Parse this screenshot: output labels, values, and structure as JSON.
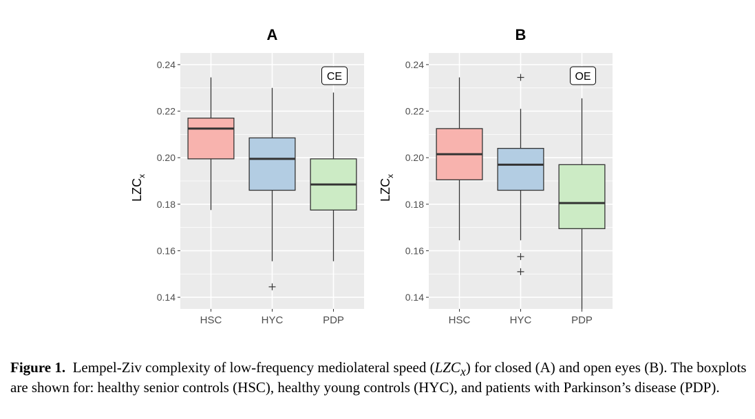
{
  "chart_data": [
    {
      "type": "boxplot",
      "title": "A",
      "ylabel": "LZC",
      "ylabel_sub": "x",
      "annotation": "CE",
      "ylim": [
        0.135,
        0.245
      ],
      "yticks": [
        0.14,
        0.16,
        0.18,
        0.2,
        0.22,
        0.24
      ],
      "ytick_labels": [
        "0.14",
        "0.16",
        "0.18",
        "0.20",
        "0.22",
        "0.24"
      ],
      "categories": [
        "HSC",
        "HYC",
        "PDP"
      ],
      "grid": true,
      "boxes": [
        {
          "name": "HSC",
          "whisker_low": 0.1775,
          "q1": 0.1995,
          "median": 0.2125,
          "q3": 0.217,
          "whisker_high": 0.2345,
          "outliers": [],
          "color": "#F8B3AE"
        },
        {
          "name": "HYC",
          "whisker_low": 0.1555,
          "q1": 0.186,
          "median": 0.1995,
          "q3": 0.2085,
          "whisker_high": 0.23,
          "outliers": [
            0.1445
          ],
          "color": "#B3CDE3"
        },
        {
          "name": "PDP",
          "whisker_low": 0.1555,
          "q1": 0.1775,
          "median": 0.1885,
          "q3": 0.1995,
          "whisker_high": 0.228,
          "outliers": [],
          "color": "#CCEBC5"
        }
      ]
    },
    {
      "type": "boxplot",
      "title": "B",
      "ylabel": "LZC",
      "ylabel_sub": "x",
      "annotation": "OE",
      "ylim": [
        0.135,
        0.245
      ],
      "yticks": [
        0.14,
        0.16,
        0.18,
        0.2,
        0.22,
        0.24
      ],
      "ytick_labels": [
        "0.14",
        "0.16",
        "0.18",
        "0.20",
        "0.22",
        "0.24"
      ],
      "categories": [
        "HSC",
        "HYC",
        "PDP"
      ],
      "grid": true,
      "boxes": [
        {
          "name": "HSC",
          "whisker_low": 0.1645,
          "q1": 0.1905,
          "median": 0.2015,
          "q3": 0.2125,
          "whisker_high": 0.2345,
          "outliers": [],
          "color": "#F8B3AE"
        },
        {
          "name": "HYC",
          "whisker_low": 0.1645,
          "q1": 0.186,
          "median": 0.197,
          "q3": 0.204,
          "whisker_high": 0.221,
          "outliers": [
            0.2345,
            0.1575,
            0.151
          ],
          "color": "#B3CDE3"
        },
        {
          "name": "PDP",
          "whisker_low": 0.135,
          "q1": 0.1695,
          "median": 0.1805,
          "q3": 0.197,
          "whisker_high": 0.2255,
          "outliers": [],
          "color": "#CCEBC5"
        }
      ]
    }
  ],
  "caption": {
    "label": "Figure 1.",
    "text_before": "Lempel-Ziv complexity of low-frequency mediolateral speed (",
    "math": "LZC",
    "math_sub": "x",
    "text_after": ") for closed (A) and open eyes (B). The boxplots are shown for: healthy senior controls (HSC), healthy young controls (HYC), and patients with Parkinson’s disease (PDP)."
  },
  "colors": {
    "panel_background": "#EBEBEB",
    "grid": "#FFFFFF",
    "box_stroke": "#333333"
  }
}
